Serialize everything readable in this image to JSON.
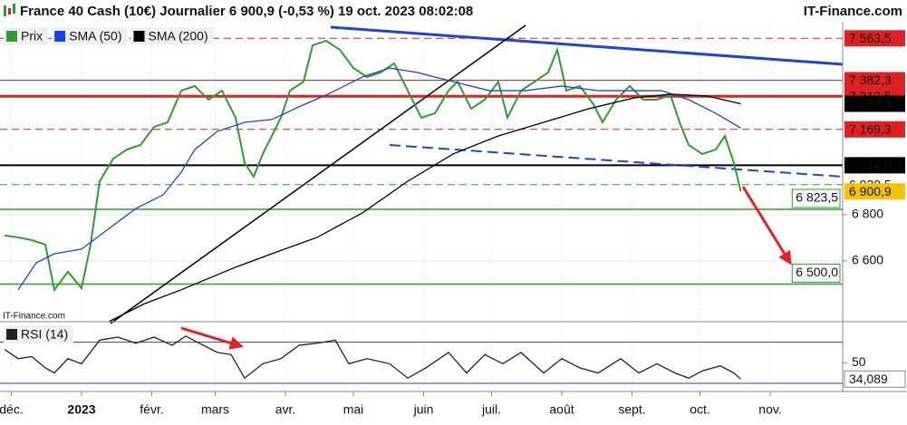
{
  "chart_data": [
    {
      "type": "line",
      "title": "France 40 Cash (10€) Journalier 6 900,9 (-0,53 %) 19 oct. 2023 08:02:08",
      "source": "IT-Finance.com",
      "xlim": [
        -36,
        336
      ],
      "xticks": [
        {
          "value": -31,
          "label": "déc."
        },
        {
          "value": 0,
          "label": "2023"
        },
        {
          "value": 31,
          "label": "févr."
        },
        {
          "value": 59,
          "label": "mars"
        },
        {
          "value": 90,
          "label": "avr."
        },
        {
          "value": 120,
          "label": "mai"
        },
        {
          "value": 151,
          "label": "juin"
        },
        {
          "value": 181,
          "label": "juil."
        },
        {
          "value": 212,
          "label": "août"
        },
        {
          "value": 243,
          "label": "sept."
        },
        {
          "value": 273,
          "label": "oct."
        },
        {
          "value": 304,
          "label": "nov."
        }
      ],
      "ylim": [
        6337,
        7651
      ],
      "yticks": [
        {
          "value": 6600,
          "label": "6 600"
        },
        {
          "value": 6800,
          "label": "6 800"
        }
      ],
      "grid": true,
      "series": [
        {
          "name": "Prix",
          "color": "#2e9e2e",
          "x": [
            -34,
            -28,
            -22,
            -16,
            -12,
            -6,
            0,
            4,
            8,
            14,
            20,
            26,
            32,
            38,
            44,
            50,
            56,
            62,
            68,
            72,
            76,
            80,
            84,
            88,
            92,
            98,
            102,
            108,
            114,
            120,
            126,
            132,
            138,
            144,
            150,
            156,
            162,
            166,
            172,
            178,
            184,
            188,
            194,
            200,
            206,
            210,
            214,
            220,
            226,
            230,
            236,
            242,
            248,
            254,
            260,
            264,
            268,
            274,
            280,
            284,
            288,
            291
          ],
          "values": [
            6710,
            6702,
            6690,
            6671,
            6475,
            6553,
            6482,
            6671,
            6945,
            7043,
            7082,
            7102,
            7180,
            7200,
            7337,
            7357,
            7298,
            7337,
            7220,
            7024,
            6965,
            7063,
            7141,
            7220,
            7337,
            7376,
            7533,
            7553,
            7514,
            7435,
            7396,
            7416,
            7455,
            7337,
            7220,
            7239,
            7337,
            7376,
            7259,
            7298,
            7376,
            7220,
            7337,
            7376,
            7416,
            7514,
            7337,
            7357,
            7278,
            7200,
            7298,
            7357,
            7298,
            7298,
            7318,
            7200,
            7102,
            7063,
            7082,
            7141,
            7024,
            6900.9
          ]
        },
        {
          "name": "SMA (50)",
          "color": "#1a44e0",
          "x": [
            -28,
            -20,
            -12,
            0,
            8,
            24,
            36,
            44,
            50,
            60,
            72,
            84,
            96,
            108,
            124,
            136,
            148,
            164,
            180,
            196,
            212,
            228,
            244,
            256,
            268,
            280,
            291
          ],
          "values": [
            6475,
            6592,
            6631,
            6651,
            6710,
            6827,
            6886,
            6984,
            7082,
            7161,
            7200,
            7212,
            7267,
            7318,
            7396,
            7435,
            7416,
            7376,
            7337,
            7337,
            7357,
            7337,
            7337,
            7337,
            7298,
            7239,
            7175.4
          ]
        },
        {
          "name": "SMA (200)",
          "color": "#000000",
          "x": [
            12,
            28,
            44,
            68,
            84,
            104,
            124,
            144,
            164,
            184,
            204,
            224,
            244,
            260,
            276,
            291
          ],
          "values": [
            6337,
            6416,
            6475,
            6573,
            6631,
            6702,
            6808,
            6945,
            7063,
            7141,
            7200,
            7259,
            7306,
            7322,
            7314,
            7280.3
          ]
        }
      ],
      "levels": [
        {
          "value": 7563.5,
          "label": "7 563,5",
          "color": "#e02020",
          "style": "dashed",
          "label_bg": "#e02020",
          "label_fg": "#ffffff"
        },
        {
          "value": 7382.3,
          "label": "7 382,3",
          "color": "#e02020",
          "style": "thin",
          "label_bg": "#e02020",
          "label_fg": "#ffffff"
        },
        {
          "value": 7312.5,
          "label": "7 312,5",
          "color": "#e02020",
          "style": "thick",
          "label_bg": "#e02020",
          "label_fg": "#ffffff"
        },
        {
          "value": 7280.3,
          "label": "7 280,3",
          "color": "#000000",
          "style": "label-only",
          "label_bg": "#000000",
          "label_fg": "#ffffff"
        },
        {
          "value": 7175.4,
          "label": "7 175,4",
          "color": "#1a44e0",
          "style": "label-only",
          "label_bg": "#ffffff",
          "label_fg": "#1a44e0"
        },
        {
          "value": 7169.3,
          "label": "7 169,3",
          "color": "#e02020",
          "style": "dashed",
          "label_bg": "#e02020",
          "label_fg": "#ffffff"
        },
        {
          "value": 7014.0,
          "label": "7 014,0",
          "color": "#000000",
          "style": "thick",
          "label_bg": "#000000",
          "label_fg": "#ffffff"
        },
        {
          "value": 6930.5,
          "label": "6 930,5",
          "color": "#2e9e2e",
          "style": "dashed",
          "label_bg": "#ffffff",
          "label_fg": "#333333"
        },
        {
          "value": 6900.9,
          "label": "6 900,9",
          "color": "#f0c000",
          "style": "label-only",
          "label_bg": "#f5c400",
          "label_fg": "#000000"
        }
      ],
      "targets": [
        {
          "value": 6823.5,
          "label": "6 823,5",
          "color": "#2e9e2e"
        },
        {
          "value": 6500.0,
          "label": "6 500,0",
          "color": "#2e9e2e"
        }
      ]
    },
    {
      "type": "line",
      "xlim": [
        -36,
        336
      ],
      "ylim": [
        22,
        90
      ],
      "yticks": [
        50
      ],
      "bands": [
        70,
        30
      ],
      "series": [
        {
          "name": "RSI (14)",
          "color": "#222222",
          "x": [
            -34,
            -28,
            -22,
            -16,
            -12,
            -6,
            0,
            8,
            16,
            24,
            32,
            40,
            46,
            52,
            60,
            66,
            72,
            80,
            88,
            96,
            104,
            112,
            118,
            126,
            136,
            144,
            152,
            162,
            170,
            178,
            186,
            194,
            204,
            212,
            220,
            228,
            238,
            246,
            254,
            262,
            268,
            274,
            282,
            288,
            291
          ],
          "values": [
            63,
            54,
            56,
            45,
            40,
            54,
            49,
            72,
            75,
            69,
            75,
            67,
            76,
            69,
            60,
            58,
            35,
            49,
            54,
            67,
            69,
            72,
            49,
            54,
            49,
            35,
            45,
            60,
            40,
            58,
            49,
            60,
            40,
            54,
            45,
            40,
            54,
            40,
            49,
            40,
            35,
            42,
            47,
            40,
            34.089
          ],
          "value_labels": [
            null,
            null,
            null,
            null,
            null,
            null,
            null,
            null,
            null,
            null,
            null,
            null,
            null,
            null,
            null,
            null,
            null,
            null,
            null,
            null,
            null,
            null,
            null,
            null,
            null,
            null,
            null,
            null,
            null,
            null,
            null,
            null,
            null,
            null,
            null,
            null,
            null,
            null,
            null,
            null,
            null,
            null,
            null,
            null,
            "34,089"
          ]
        }
      ]
    }
  ]
}
